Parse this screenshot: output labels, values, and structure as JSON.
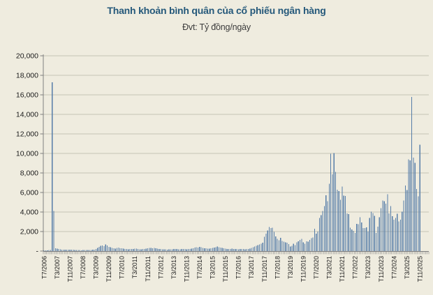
{
  "title": "Thanh khoản bình quân của cổ phiếu ngân hàng",
  "subtitle": "Đvt: Tỷ đồng/ngày",
  "colors": {
    "background": "#efecdf",
    "bar": "#567da8",
    "gridline": "#c6c3b6",
    "axis": "#7f7f7f",
    "title": "#24587a",
    "subtitle": "#3c3c3c",
    "text": "#1a1a1a"
  },
  "chart_data": {
    "type": "bar",
    "title": "Thanh khoản bình quân của cổ phiếu ngân hàng",
    "unit_label": "Đvt: Tỷ đồng/ngày",
    "xlabel": "",
    "ylabel": "",
    "ylim": [
      0,
      20000
    ],
    "grid": true,
    "x_start": "T7/2006",
    "x_end": "T11/2025",
    "x_frequency": "monthly",
    "x_tick_interval": 8,
    "x_tick_labels": [
      "T7/2006",
      "T3/2007",
      "T11/2007",
      "T7/2008",
      "T3/2009",
      "T11/2009",
      "T7/2010",
      "T3/2011",
      "T11/2011",
      "T7/2012",
      "T3/2013",
      "T11/2013",
      "T7/2014",
      "T3/2015",
      "T11/2015",
      "T7/2016",
      "T3/2017",
      "T11/2017",
      "T7/2018",
      "T3/2019",
      "T11/2019",
      "T7/2020",
      "T3/2021",
      "T11/2021",
      "T7/2022",
      "T3/2023",
      "T11/2023",
      "T7/2024",
      "T3/2025",
      "T11/2025"
    ],
    "y_ticks": [
      {
        "value": 0,
        "label": "-"
      },
      {
        "value": 2000,
        "label": "2,000"
      },
      {
        "value": 4000,
        "label": "4,000"
      },
      {
        "value": 6000,
        "label": "6,000"
      },
      {
        "value": 8000,
        "label": "8,000"
      },
      {
        "value": 10000,
        "label": "10,000"
      },
      {
        "value": 12000,
        "label": "12,000"
      },
      {
        "value": 14000,
        "label": "14,000"
      },
      {
        "value": 16000,
        "label": "16,000"
      },
      {
        "value": 18000,
        "label": "18,000"
      },
      {
        "value": 20000,
        "label": "20,000"
      }
    ],
    "values": [
      60,
      70,
      80,
      90,
      110,
      17300,
      4100,
      300,
      250,
      210,
      180,
      160,
      150,
      140,
      130,
      140,
      150,
      160,
      140,
      120,
      110,
      100,
      90,
      85,
      90,
      95,
      105,
      100,
      95,
      110,
      130,
      160,
      220,
      310,
      430,
      520,
      580,
      490,
      670,
      560,
      440,
      380,
      330,
      290,
      260,
      310,
      350,
      300,
      270,
      240,
      220,
      200,
      190,
      210,
      200,
      230,
      260,
      240,
      210,
      190,
      180,
      200,
      230,
      260,
      300,
      330,
      310,
      280,
      330,
      300,
      260,
      230,
      210,
      190,
      180,
      170,
      160,
      180,
      170,
      190,
      210,
      230,
      210,
      190,
      180,
      200,
      220,
      200,
      190,
      210,
      230,
      260,
      300,
      340,
      380,
      350,
      420,
      380,
      330,
      300,
      280,
      260,
      240,
      270,
      310,
      350,
      400,
      460,
      410,
      360,
      310,
      280,
      250,
      230,
      210,
      230,
      250,
      230,
      210,
      200,
      190,
      210,
      230,
      210,
      190,
      200,
      220,
      260,
      310,
      380,
      450,
      520,
      600,
      680,
      760,
      840,
      1450,
      1800,
      2100,
      2450,
      2350,
      2400,
      1950,
      1500,
      1260,
      1100,
      1370,
      1050,
      950,
      900,
      850,
      710,
      480,
      520,
      760,
      600,
      905,
      1000,
      1140,
      1240,
      905,
      760,
      1000,
      950,
      1140,
      1310,
      1380,
      2290,
      1790,
      2000,
      3380,
      3690,
      4100,
      4620,
      5710,
      5120,
      6900,
      9950,
      7860,
      10050,
      8100,
      6290,
      6140,
      5240,
      6600,
      5670,
      5660,
      3850,
      3800,
      2380,
      2230,
      2070,
      1860,
      2790,
      2760,
      3450,
      2930,
      2360,
      2340,
      2430,
      2000,
      3380,
      4050,
      3900,
      3600,
      1850,
      2500,
      3450,
      4400,
      5190,
      5120,
      4860,
      5830,
      3860,
      4620,
      3570,
      3210,
      3380,
      3810,
      3050,
      3210,
      4050,
      5190,
      6710,
      6240,
      9400,
      9300,
      15790,
      9570,
      9050,
      6350,
      5600,
      10880
    ],
    "trailing_empty_categories": 5,
    "legend": null
  }
}
